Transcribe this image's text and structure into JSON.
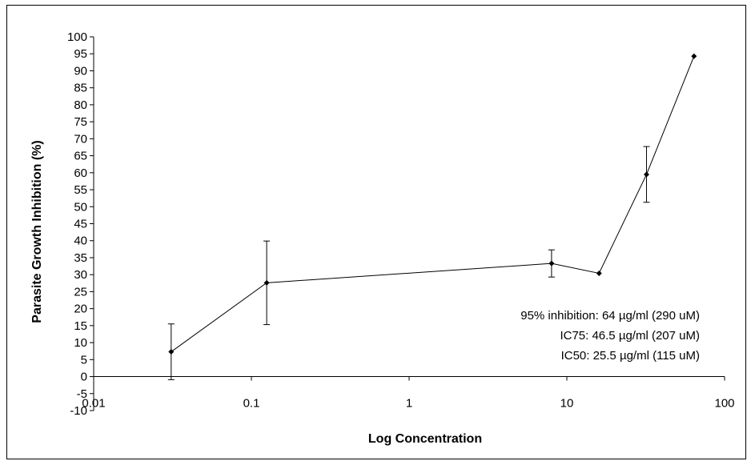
{
  "chart_data": {
    "type": "line",
    "xlabel": "Log Concentration",
    "ylabel": "Parasite Growth Inhibition  (%)",
    "x_scale": "log",
    "xlim": [
      0.01,
      100
    ],
    "ylim": [
      -10,
      100
    ],
    "y_ticks": [
      -10,
      -5,
      0,
      5,
      10,
      15,
      20,
      25,
      30,
      35,
      40,
      45,
      50,
      55,
      60,
      65,
      70,
      75,
      80,
      85,
      90,
      95,
      100
    ],
    "x_ticks": [
      0.01,
      0.1,
      1,
      10,
      100
    ],
    "x_tick_labels": [
      "0.01",
      "0.1",
      "1",
      "10",
      "100"
    ],
    "grid": false,
    "legend": "none",
    "series": [
      {
        "points": [
          {
            "x": 0.031,
            "y": 7.3,
            "err": 8.2
          },
          {
            "x": 0.125,
            "y": 27.6,
            "err": 12.3
          },
          {
            "x": 8,
            "y": 33.3,
            "err": 4.0
          },
          {
            "x": 16,
            "y": 30.4,
            "err": 0
          },
          {
            "x": 32,
            "y": 59.5,
            "err": 8.2
          },
          {
            "x": 64,
            "y": 94.3,
            "err": 0
          }
        ]
      }
    ],
    "annotations": [
      "95% inhibition: 64 µg/ml (290 uM)",
      "IC75: 46.5 µg/ml (207 uM)",
      "IC50: 25.5 µg/ml (115 uM)"
    ],
    "colors": {
      "line": "#000000",
      "marker": "#000000"
    }
  }
}
